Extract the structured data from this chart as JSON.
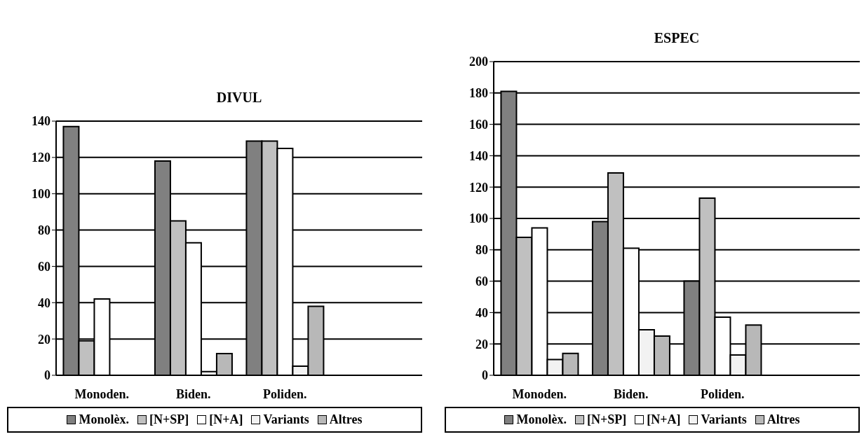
{
  "chart_data": [
    {
      "type": "bar",
      "title": "DIVUL",
      "categories": [
        "Monoden.",
        "Biden.",
        "Poliden.",
        null
      ],
      "ylim": [
        0,
        140
      ],
      "yticks": [
        0,
        20,
        40,
        60,
        80,
        100,
        120,
        140
      ],
      "grid": "y",
      "legend": "bottom",
      "series": [
        {
          "name": "Monolèx.",
          "color": "#808080",
          "values": [
            137,
            118,
            129,
            null
          ]
        },
        {
          "name": "[N+SP]",
          "color": "#c0c0c0",
          "values": [
            19,
            85,
            129,
            null
          ]
        },
        {
          "name": "[N+A]",
          "color": "#ffffff",
          "values": [
            42,
            73,
            125,
            null
          ]
        },
        {
          "name": "Variants",
          "color": "#f2f2f2",
          "values": [
            0,
            2,
            5,
            null
          ]
        },
        {
          "name": "Altres",
          "color": "#b8b8b8",
          "values": [
            0,
            12,
            38,
            null
          ]
        }
      ]
    },
    {
      "type": "bar",
      "title": "ESPEC",
      "categories": [
        "Monoden.",
        "Biden.",
        "Poliden.",
        null
      ],
      "ylim": [
        0,
        200
      ],
      "yticks": [
        0,
        20,
        40,
        60,
        80,
        100,
        120,
        140,
        160,
        180,
        200
      ],
      "grid": "y",
      "legend": "bottom",
      "series": [
        {
          "name": "Monolèx.",
          "color": "#808080",
          "values": [
            181,
            98,
            60,
            null
          ]
        },
        {
          "name": "[N+SP]",
          "color": "#c0c0c0",
          "values": [
            88,
            129,
            113,
            null
          ]
        },
        {
          "name": "[N+A]",
          "color": "#ffffff",
          "values": [
            94,
            81,
            37,
            null
          ]
        },
        {
          "name": "Variants",
          "color": "#f2f2f2",
          "values": [
            10,
            29,
            13,
            null
          ]
        },
        {
          "name": "Altres",
          "color": "#b8b8b8",
          "values": [
            14,
            25,
            32,
            null
          ]
        }
      ]
    }
  ]
}
